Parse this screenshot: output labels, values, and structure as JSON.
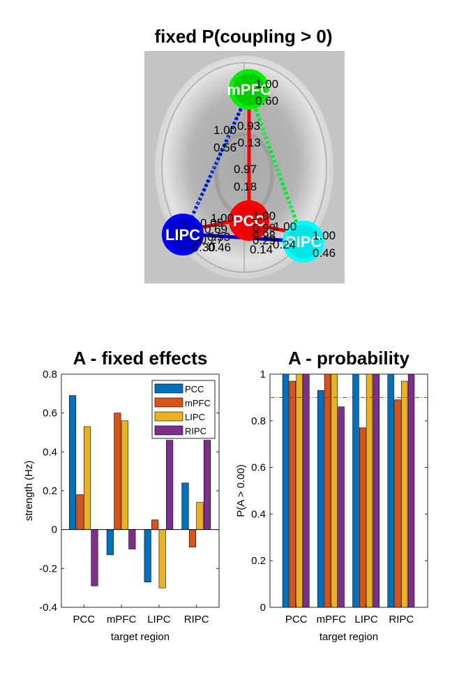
{
  "network_panel": {
    "title": "fixed P(coupling > 0)",
    "nodes": [
      {
        "id": "mPFC",
        "label": "mPFC",
        "color": "#00dd00"
      },
      {
        "id": "PCC",
        "label": "PCC",
        "color": "#ff0000"
      },
      {
        "id": "LIPC",
        "label": "LIPC",
        "color": "#0000dd"
      },
      {
        "id": "RIPC",
        "label": "RIPC",
        "color": "#00ffff"
      }
    ],
    "annotations": [
      {
        "text": "1.00"
      },
      {
        "text": "0.60"
      },
      {
        "text": "1.00"
      },
      {
        "text": "0.56"
      },
      {
        "text": "0.93"
      },
      {
        "text": "-0.13"
      },
      {
        "text": "0.97"
      },
      {
        "text": "0.18"
      },
      {
        "text": "1.00"
      },
      {
        "text": "0.69"
      },
      {
        "text": "1.00"
      },
      {
        "text": "0.53"
      },
      {
        "text": "1.00"
      },
      {
        "text": "0.46"
      },
      {
        "text": "0.99"
      },
      {
        "text": "0.24"
      },
      {
        "text": "0.98"
      },
      {
        "text": "0.29"
      },
      {
        "text": "0.14"
      },
      {
        "text": "-0.30"
      },
      {
        "text": "0.46"
      },
      {
        "text": "-0.27"
      },
      {
        "text": "1.00"
      },
      {
        "text": "0.05"
      }
    ]
  },
  "chart_data": [
    {
      "type": "bar",
      "title": "A - fixed effects",
      "xlabel": "target region",
      "ylabel": "strength (Hz)",
      "ylim": [
        -0.4,
        0.8
      ],
      "yticks": [
        "0.8",
        "0.6",
        "0.4",
        "0.2",
        "0",
        "-0.2",
        "-0.4"
      ],
      "ytick_values": [
        0.8,
        0.6,
        0.4,
        0.2,
        0,
        -0.2,
        -0.4
      ],
      "categories": [
        "PCC",
        "mPFC",
        "LIPC",
        "RIPC"
      ],
      "legend_position": "top-right",
      "series": [
        {
          "name": "PCC",
          "color": "#0072BD",
          "values": [
            0.69,
            -0.13,
            -0.27,
            0.24
          ]
        },
        {
          "name": "mPFC",
          "color": "#D95319",
          "values": [
            0.18,
            0.6,
            0.05,
            -0.09
          ]
        },
        {
          "name": "LIPC",
          "color": "#EDB120",
          "values": [
            0.53,
            0.56,
            -0.3,
            0.14
          ]
        },
        {
          "name": "RIPC",
          "color": "#7E2F8E",
          "values": [
            -0.29,
            -0.1,
            0.46,
            0.46
          ]
        }
      ]
    },
    {
      "type": "bar",
      "title": "A - probability",
      "xlabel": "target region",
      "ylabel": "P(A > 0.00)",
      "ylim": [
        0,
        1
      ],
      "yticks": [
        "1",
        "0.8",
        "0.6",
        "0.4",
        "0.2",
        "0"
      ],
      "ytick_values": [
        1,
        0.8,
        0.6,
        0.4,
        0.2,
        0
      ],
      "threshold": 0.9,
      "threshold_color": "#ff0000",
      "categories": [
        "PCC",
        "mPFC",
        "LIPC",
        "RIPC"
      ],
      "series": [
        {
          "name": "PCC",
          "color": "#0072BD",
          "values": [
            1.0,
            0.93,
            1.0,
            1.0
          ]
        },
        {
          "name": "mPFC",
          "color": "#D95319",
          "values": [
            0.97,
            1.0,
            0.77,
            0.89
          ]
        },
        {
          "name": "LIPC",
          "color": "#EDB120",
          "values": [
            1.0,
            1.0,
            1.0,
            0.97
          ]
        },
        {
          "name": "RIPC",
          "color": "#7E2F8E",
          "values": [
            1.0,
            0.86,
            1.0,
            1.0
          ]
        }
      ]
    }
  ]
}
